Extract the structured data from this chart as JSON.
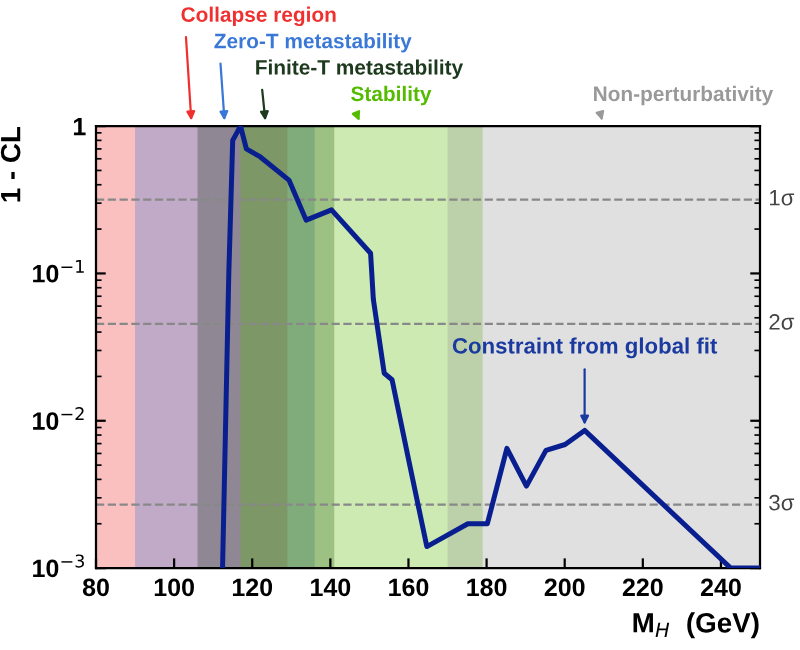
{
  "chart_data": {
    "type": "line",
    "xlabel": "M$_{H}$  (GeV)",
    "ylabel": "1 - CL",
    "log": "y",
    "xlim": [
      80,
      250
    ],
    "xticks": [
      80,
      100,
      120,
      140,
      160,
      180,
      200,
      220,
      240
    ],
    "ylim": [
      0.001,
      1
    ],
    "yticks": [
      {
        "value": 1,
        "label": "1"
      },
      {
        "value": 0.1,
        "label": "10$^{−1}$"
      },
      {
        "value": 0.01,
        "label": "10$^{−2}$"
      },
      {
        "value": 0.001,
        "label": "10$^{−3}$"
      }
    ],
    "x": [
      112.4,
      114,
      115,
      117,
      118.5,
      122,
      129.4,
      133.8,
      140.3,
      150.3,
      151,
      153.8,
      155.8,
      160,
      164.7,
      175.2,
      180.2,
      185.2,
      190.2,
      195.2,
      200.1,
      205.1,
      242.5,
      250
    ],
    "series": [
      {
        "color": "#0a1f8f",
        "values": [
          0.001,
          0.1,
          0.8,
          1.0,
          0.7,
          0.62,
          0.43,
          0.23,
          0.27,
          0.137,
          0.067,
          0.021,
          0.019,
          0.0055,
          0.0014,
          0.002,
          0.002,
          0.0065,
          0.0036,
          0.0063,
          0.0069,
          0.0086,
          0.001,
          0.001
        ]
      }
    ],
    "bands": [
      {
        "axis": "x",
        "from": 80,
        "to": 129,
        "label": "Collapse region",
        "color": "#f03030"
      },
      {
        "axis": "x",
        "from": 90,
        "to": 136,
        "label": "Zero-T metastability",
        "color": "#3a78d8"
      },
      {
        "axis": "x",
        "from": 106,
        "to": 141,
        "label": "Finite-T metastability",
        "color": "#1e3a1e"
      },
      {
        "axis": "x",
        "from": 117,
        "to": 179,
        "label": "Stability",
        "color": "#55bb00"
      },
      {
        "axis": "x",
        "from": 170,
        "to": 250,
        "label": "Non-perturbativity",
        "color": "#999999"
      }
    ],
    "ref_lines": [
      {
        "axis": "y",
        "value": 0.317,
        "label": "1σ",
        "color": "#888888",
        "line_style": "dashed"
      },
      {
        "axis": "y",
        "value": 0.0455,
        "label": "2σ",
        "color": "#888888",
        "line_style": "dashed"
      },
      {
        "axis": "y",
        "value": 0.0027,
        "label": "3σ",
        "color": "#888888",
        "line_style": "dashed"
      }
    ],
    "annotations": [
      {
        "text": "Constraint from global fit",
        "x": 205.1,
        "y": 0.0086
      }
    ],
    "grid": false,
    "legend": false,
    "marker": "none",
    "line_style": "solid"
  }
}
